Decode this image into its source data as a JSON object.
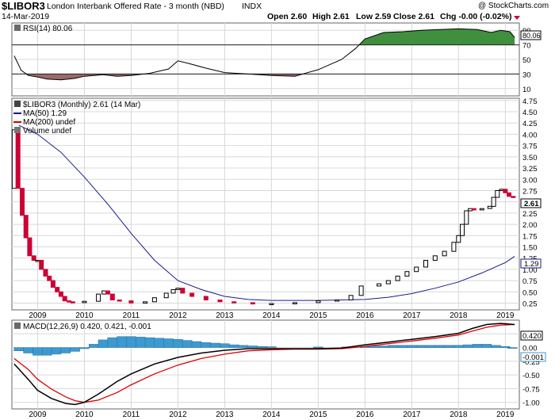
{
  "header": {
    "symbol": "$LIBOR3",
    "name": "London Interbank Offered Rate - 3 month (NBD)",
    "exchange": "INDX",
    "date": "14-Mar-2019",
    "watermark": "@ StockCharts.com",
    "open": "Open 2.60",
    "high": "High 2.61",
    "low": "Low 2.59",
    "close": "Close 2.61",
    "chg": "Chg -0.00 (-0.02%)"
  },
  "colors": {
    "up_candle": "#000000",
    "down_candle": "#cc0033",
    "ma50": "#1a1a8c",
    "ma200": "#dd0000",
    "rsi_fill_high": "#3f8f3f",
    "rsi_fill_low": "#9a6a6a",
    "macd_line": "#000000",
    "signal_line": "#dd0000",
    "histogram": "#3d9ad1",
    "grid": "#d8d8d8"
  },
  "chart_data": [
    {
      "type": "line",
      "name": "rsi_panel",
      "legend": "RSI(14) 80.06",
      "ylim": [
        0,
        100
      ],
      "y_ticks": [
        "90",
        "70",
        "50",
        "30",
        "10"
      ],
      "overbought": 70,
      "oversold": 30,
      "last_value_label": "80.06",
      "x": [
        2008.5,
        2008.65,
        2008.8,
        2009.0,
        2009.2,
        2009.5,
        2009.8,
        2010.0,
        2010.4,
        2010.7,
        2011.0,
        2011.4,
        2011.8,
        2012.0,
        2012.2,
        2012.6,
        2013.0,
        2013.5,
        2014.0,
        2014.5,
        2015.0,
        2015.5,
        2015.8,
        2016.0,
        2016.4,
        2016.8,
        2017.2,
        2017.6,
        2018.0,
        2018.4,
        2018.7,
        2018.9,
        2019.1,
        2019.2
      ],
      "values": [
        55,
        35,
        28,
        26,
        23,
        22,
        24,
        27,
        29,
        27,
        28,
        31,
        37,
        48,
        45,
        38,
        32,
        30,
        28,
        27,
        36,
        50,
        65,
        78,
        87,
        88,
        90,
        91,
        92,
        91,
        87,
        90,
        88,
        80.06
      ]
    },
    {
      "type": "bar",
      "name": "price_panel",
      "legend": "$LIBOR3 (Monthly) 2.61 (14 Mar)",
      "legend_ma50": "MA(50) 1.29",
      "legend_ma200": "MA(200) undef",
      "legend_volume": "Volume undef",
      "ylim": [
        0.1,
        4.8
      ],
      "y_ticks": [
        "4.75",
        "4.50",
        "4.25",
        "4.00",
        "3.75",
        "3.50",
        "3.25",
        "3.00",
        "2.75",
        "2.50",
        "2.25",
        "2.00",
        "1.75",
        "1.50",
        "1.25",
        "1.00",
        "0.75",
        "0.50",
        "0.25"
      ],
      "x_ticks": [
        "2009",
        "2010",
        "2011",
        "2012",
        "2013",
        "2014",
        "2015",
        "2016",
        "2017",
        "2018",
        "2019"
      ],
      "last_price_label": "2.61",
      "last_ma_label": "1.29",
      "candle_years": [
        2008.5,
        2008.58,
        2008.67,
        2008.75,
        2008.83,
        2008.92,
        2009.0,
        2009.08,
        2009.17,
        2009.25,
        2009.33,
        2009.42,
        2009.5,
        2009.58,
        2009.67,
        2009.75,
        2010.0,
        2010.3,
        2010.42,
        2010.5,
        2010.6,
        2010.75,
        2011.0,
        2011.3,
        2011.5,
        2011.75,
        2011.9,
        2012.0,
        2012.1,
        2012.3,
        2012.6,
        2012.9,
        2013.2,
        2013.6,
        2014.0,
        2014.5,
        2015.0,
        2015.4,
        2015.7,
        2015.92,
        2016.3,
        2016.5,
        2016.7,
        2016.9,
        2017.1,
        2017.3,
        2017.5,
        2017.7,
        2017.9,
        2018.0,
        2018.08,
        2018.17,
        2018.25,
        2018.33,
        2018.5,
        2018.67,
        2018.75,
        2018.83,
        2018.92,
        2019.0,
        2019.08,
        2019.17
      ],
      "open": [
        2.8,
        4.1,
        2.8,
        2.2,
        1.7,
        1.3,
        1.2,
        1.2,
        1.0,
        0.85,
        0.75,
        0.6,
        0.5,
        0.4,
        0.3,
        0.28,
        0.26,
        0.29,
        0.45,
        0.52,
        0.45,
        0.32,
        0.3,
        0.25,
        0.28,
        0.37,
        0.47,
        0.55,
        0.58,
        0.47,
        0.4,
        0.32,
        0.28,
        0.26,
        0.23,
        0.24,
        0.26,
        0.3,
        0.32,
        0.42,
        0.63,
        0.68,
        0.75,
        0.85,
        0.95,
        1.05,
        1.2,
        1.3,
        1.4,
        1.6,
        1.75,
        2.0,
        2.3,
        2.35,
        2.32,
        2.35,
        2.4,
        2.6,
        2.75,
        2.78,
        2.7,
        2.62
      ],
      "close": [
        4.1,
        2.8,
        2.2,
        1.7,
        1.3,
        1.2,
        1.2,
        1.0,
        0.85,
        0.75,
        0.6,
        0.5,
        0.4,
        0.3,
        0.28,
        0.26,
        0.29,
        0.45,
        0.52,
        0.45,
        0.32,
        0.3,
        0.25,
        0.28,
        0.37,
        0.47,
        0.55,
        0.58,
        0.47,
        0.4,
        0.32,
        0.28,
        0.26,
        0.23,
        0.24,
        0.26,
        0.3,
        0.32,
        0.42,
        0.63,
        0.68,
        0.75,
        0.85,
        0.95,
        1.05,
        1.2,
        1.3,
        1.4,
        1.6,
        1.75,
        2.0,
        2.3,
        2.35,
        2.32,
        2.35,
        2.4,
        2.6,
        2.75,
        2.78,
        2.7,
        2.62,
        2.61
      ],
      "ma50_x": [
        2008.6,
        2009.0,
        2009.5,
        2010.0,
        2010.5,
        2011.0,
        2011.5,
        2012.0,
        2012.5,
        2013.0,
        2013.5,
        2014.0,
        2014.5,
        2015.0,
        2015.5,
        2016.0,
        2016.5,
        2017.0,
        2017.5,
        2018.0,
        2018.5,
        2019.0,
        2019.2
      ],
      "ma50_values": [
        4.2,
        4.0,
        3.6,
        3.05,
        2.45,
        1.8,
        1.2,
        0.75,
        0.55,
        0.4,
        0.33,
        0.31,
        0.31,
        0.31,
        0.32,
        0.33,
        0.38,
        0.46,
        0.58,
        0.72,
        0.92,
        1.15,
        1.29
      ]
    },
    {
      "type": "line",
      "name": "macd_panel",
      "legend": "MACD(12,26,9) 0.420, 0.421, -0.001",
      "ylim": [
        -1.12,
        0.5
      ],
      "y_ticks": [
        "0.25",
        "0.00",
        "-0.25",
        "-0.50",
        "-0.75",
        "-1.00"
      ],
      "x_ticks": [
        "2009",
        "2010",
        "2011",
        "2012",
        "2013",
        "2014",
        "2015",
        "2016",
        "2017",
        "2018",
        "2019"
      ],
      "macd_label": "0.420",
      "hist_label": "-0.001",
      "x": [
        2008.5,
        2008.8,
        2009.0,
        2009.3,
        2009.6,
        2009.8,
        2010.0,
        2010.3,
        2010.7,
        2011.0,
        2011.5,
        2012.0,
        2012.5,
        2013.0,
        2013.5,
        2014.0,
        2014.5,
        2015.0,
        2015.5,
        2016.0,
        2016.5,
        2017.0,
        2017.5,
        2018.0,
        2018.3,
        2018.6,
        2018.9,
        2019.2
      ],
      "macd": [
        -0.3,
        -0.58,
        -0.78,
        -0.93,
        -1.02,
        -1.04,
        -1.0,
        -0.85,
        -0.62,
        -0.48,
        -0.3,
        -0.18,
        -0.1,
        -0.05,
        -0.02,
        -0.02,
        -0.02,
        -0.02,
        -0.01,
        0.05,
        0.1,
        0.15,
        0.2,
        0.26,
        0.35,
        0.42,
        0.44,
        0.42
      ],
      "signal": [
        -0.2,
        -0.4,
        -0.58,
        -0.76,
        -0.9,
        -0.97,
        -1.0,
        -0.96,
        -0.82,
        -0.68,
        -0.48,
        -0.32,
        -0.2,
        -0.12,
        -0.06,
        -0.04,
        -0.03,
        -0.03,
        -0.02,
        0.02,
        0.07,
        0.12,
        0.17,
        0.23,
        0.3,
        0.37,
        0.41,
        0.42
      ],
      "histogram_x": [
        2008.6,
        2008.8,
        2009.0,
        2009.2,
        2009.4,
        2009.6,
        2009.8,
        2010.0,
        2010.2,
        2010.4,
        2010.6,
        2010.8,
        2011.0,
        2011.2,
        2011.4,
        2011.6,
        2011.8,
        2012.0,
        2012.2,
        2012.4,
        2012.6,
        2012.8,
        2013.0,
        2013.2,
        2013.4,
        2013.6,
        2013.8,
        2014.0,
        2015.0,
        2015.6,
        2016.0,
        2016.2,
        2016.4,
        2016.6,
        2016.8,
        2017.0,
        2017.2,
        2017.4,
        2017.6,
        2017.8,
        2018.0,
        2018.2,
        2018.4,
        2018.6,
        2018.8,
        2019.0,
        2019.15
      ],
      "histogram": [
        -0.06,
        -0.1,
        -0.14,
        -0.14,
        -0.12,
        -0.1,
        -0.07,
        -0.02,
        0.06,
        0.14,
        0.18,
        0.2,
        0.2,
        0.19,
        0.18,
        0.17,
        0.16,
        0.15,
        0.13,
        0.11,
        0.09,
        0.08,
        0.07,
        0.05,
        0.04,
        0.03,
        0.02,
        0.015,
        0.01,
        0.01,
        0.02,
        0.03,
        0.03,
        0.04,
        0.04,
        0.04,
        0.04,
        0.04,
        0.04,
        0.04,
        0.04,
        0.05,
        0.06,
        0.06,
        0.04,
        0.02,
        -0.001
      ]
    }
  ]
}
